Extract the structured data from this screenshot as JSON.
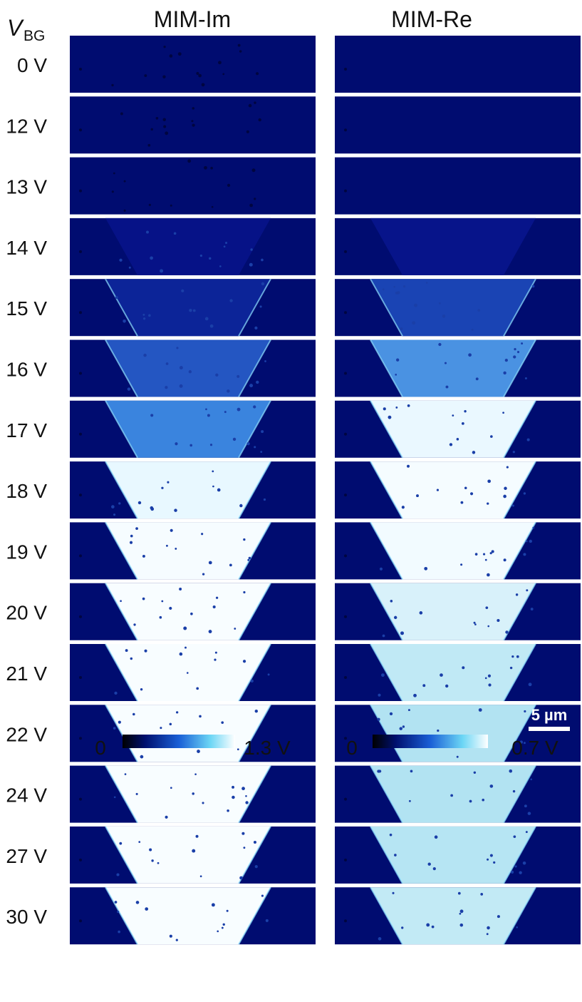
{
  "header": {
    "vbg_symbol": "V",
    "vbg_subscript": "BG",
    "columns": [
      "MIM-Im",
      "MIM-Re"
    ]
  },
  "rows": [
    "0 V",
    "12 V",
    "13 V",
    "14 V",
    "15 V",
    "16 V",
    "17 V",
    "18 V",
    "19 V",
    "20 V",
    "21 V",
    "22 V",
    "24 V",
    "27 V",
    "30 V"
  ],
  "colorbars": [
    {
      "min": "0",
      "max": "1.3 V"
    },
    {
      "min": "0",
      "max": "0.7 V"
    }
  ],
  "scale_bar": "5 µm"
}
